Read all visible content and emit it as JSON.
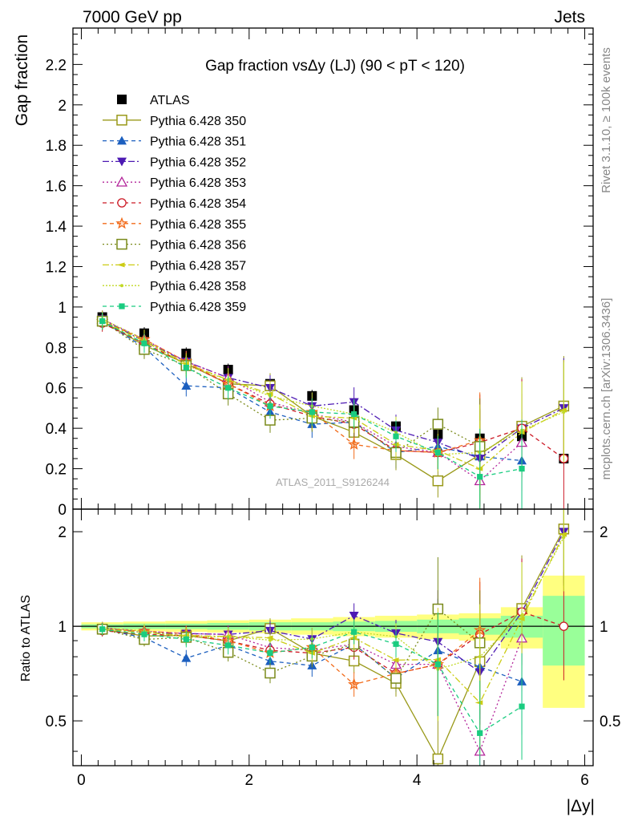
{
  "header": {
    "left": "7000 GeV pp",
    "right": "Jets"
  },
  "side_labels": {
    "rivet": "Rivet 3.1.10, ≥ 100k events",
    "mcplots": "mcplots.cern.ch [arXiv:1306.3436]"
  },
  "colors": {
    "ATLAS": "#000000",
    "350": "#999919",
    "351": "#1c5fbf",
    "352": "#4d1ab3",
    "353": "#b3249a",
    "354": "#cc1a26",
    "355": "#f26b1a",
    "356": "#7a8a1a",
    "357": "#cccc14",
    "358": "#c2d926",
    "359": "#1acc80",
    "band_yellow": "#ffff80",
    "band_green": "#99ff99"
  },
  "chart_data": [
    {
      "type": "line",
      "title": "Gap fraction vsΔy (LJ) (90 < pT < 120)",
      "ylabel": "Gap fraction",
      "watermark": "ATLAS_2011_S9126244",
      "xlim": [
        -0.1,
        6.1
      ],
      "ylim": [
        0,
        2.38
      ],
      "yticks": [
        "0",
        "0.2",
        "0.4",
        "0.6",
        "0.8",
        "1",
        "1.2",
        "1.4",
        "1.6",
        "1.8",
        "2",
        "2.2"
      ],
      "grid": false,
      "legend_position": "top-left",
      "x": [
        0.25,
        0.75,
        1.25,
        1.75,
        2.25,
        2.75,
        3.25,
        3.75,
        4.25,
        4.75,
        5.25,
        5.75
      ],
      "series": [
        {
          "name": "ATLAS",
          "marker": "square-filled",
          "values": [
            0.95,
            0.87,
            0.77,
            0.69,
            0.62,
            0.56,
            0.49,
            0.41,
            0.37,
            0.35,
            0.36,
            0.25
          ]
        },
        {
          "name": "Pythia 6.428 350",
          "marker": "square-open",
          "values": [
            0.93,
            0.81,
            0.72,
            0.62,
            0.61,
            0.46,
            0.38,
            0.27,
            0.14,
            0.27,
            0.41,
            0.51
          ]
        },
        {
          "name": "Pythia 6.428 351",
          "marker": "triangle-up-filled",
          "values": [
            0.93,
            0.8,
            0.61,
            0.6,
            0.48,
            0.42,
            0.43,
            0.28,
            0.31,
            0.26,
            0.24,
            null
          ]
        },
        {
          "name": "Pythia 6.428 352",
          "marker": "triangle-down-filled",
          "values": [
            0.94,
            0.83,
            0.73,
            0.65,
            0.6,
            0.51,
            0.53,
            0.39,
            0.33,
            0.25,
            0.4,
            0.5
          ]
        },
        {
          "name": "Pythia 6.428 353",
          "marker": "triangle-up-open",
          "values": [
            0.94,
            0.84,
            0.73,
            0.65,
            0.53,
            0.47,
            0.43,
            0.31,
            0.28,
            0.14,
            0.33,
            null
          ]
        },
        {
          "name": "Pythia 6.428 354",
          "marker": "circle-open",
          "values": [
            0.92,
            0.82,
            0.72,
            0.62,
            0.52,
            0.46,
            0.42,
            0.29,
            0.28,
            0.33,
            0.4,
            0.25
          ]
        },
        {
          "name": "Pythia 6.428 355",
          "marker": "star-open",
          "values": [
            0.93,
            0.84,
            0.73,
            0.62,
            0.51,
            0.48,
            0.32,
            0.29,
            0.28,
            0.34,
            null,
            null
          ]
        },
        {
          "name": "Pythia 6.428 356",
          "marker": "square-open",
          "values": [
            0.93,
            0.79,
            0.71,
            0.57,
            0.44,
            0.45,
            0.43,
            0.28,
            0.42,
            0.31,
            null,
            null
          ]
        },
        {
          "name": "Pythia 6.428 357",
          "marker": "triangle-left",
          "values": [
            0.93,
            0.83,
            0.72,
            0.64,
            0.57,
            0.46,
            0.45,
            0.32,
            0.29,
            0.2,
            0.38,
            0.49
          ]
        },
        {
          "name": "Pythia 6.428 358",
          "marker": "dot",
          "values": [
            0.94,
            0.84,
            0.71,
            0.64,
            0.56,
            0.51,
            0.47,
            0.38,
            0.27,
            0.28,
            0.39,
            0.48
          ]
        },
        {
          "name": "Pythia 6.428 359",
          "marker": "square-filled-small",
          "values": [
            0.93,
            0.82,
            0.7,
            0.6,
            0.51,
            0.48,
            0.47,
            0.36,
            0.28,
            0.16,
            0.2,
            null
          ]
        }
      ]
    },
    {
      "type": "line",
      "ylabel": "Ratio to ATLAS",
      "xlabel": "|Δy|",
      "xlim": [
        -0.1,
        6.1
      ],
      "xticks": [
        "0",
        "2",
        "4",
        "6"
      ],
      "ylim": [
        0.36,
        2.36
      ],
      "log_scale": true,
      "yticks": [
        "0.5",
        "1",
        "2"
      ],
      "reference_line": 1,
      "uncertainty_band": {
        "yellow_half_width": [
          0.03,
          0.035,
          0.04,
          0.045,
          0.05,
          0.06,
          0.07,
          0.08,
          0.09,
          0.1,
          0.15,
          0.45
        ],
        "green_half_width": [
          0.015,
          0.02,
          0.02,
          0.025,
          0.03,
          0.03,
          0.035,
          0.04,
          0.05,
          0.06,
          0.08,
          0.25
        ]
      },
      "note": "ratio series are each Pythia series divided by ATLAS"
    }
  ]
}
